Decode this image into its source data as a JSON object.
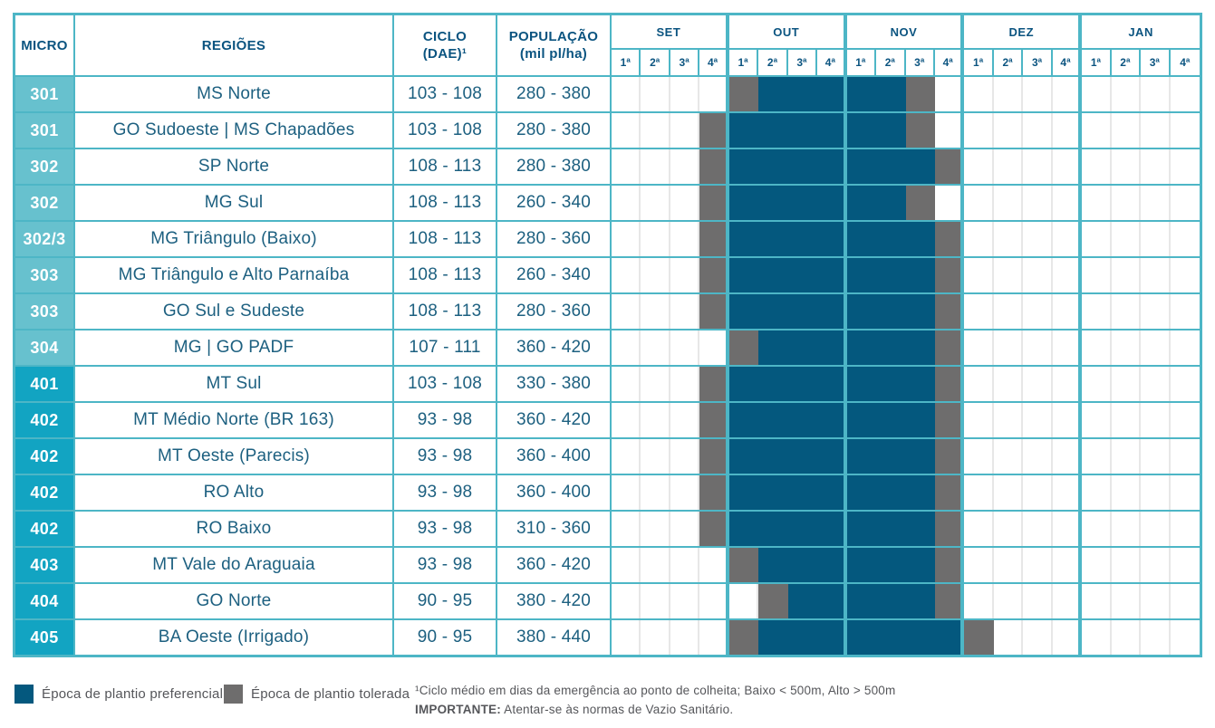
{
  "colors": {
    "teal": "#4db6c6",
    "header_text": "#0b5480",
    "cell_text": "#1d6080",
    "micro_bg_300": "#67c1ce",
    "micro_bg_400": "#12a4c2",
    "bar_preferencial": "#04587e",
    "bar_tolerada": "#6e6d6d",
    "week_line": "#e7e7e7",
    "note_text": "#55565a"
  },
  "header": {
    "micro": "MICRO",
    "regioes": "REGIÕES",
    "ciclo_line1": "CICLO",
    "ciclo_line2": "(DAE)¹",
    "pop_line1": "POPULAÇÃO",
    "pop_line2": "(mil pl/ha)",
    "months": [
      "SET",
      "OUT",
      "NOV",
      "DEZ",
      "JAN"
    ],
    "weeks": [
      "1ª",
      "2ª",
      "3ª",
      "4ª"
    ]
  },
  "chart_data": {
    "type": "table",
    "title": "Calendário de época de plantio por microrregião",
    "legend_position": "bottom",
    "week_columns": [
      "SET 1ª",
      "SET 2ª",
      "SET 3ª",
      "SET 4ª",
      "OUT 1ª",
      "OUT 2ª",
      "OUT 3ª",
      "OUT 4ª",
      "NOV 1ª",
      "NOV 2ª",
      "NOV 3ª",
      "NOV 4ª",
      "DEZ 1ª",
      "DEZ 2ª",
      "DEZ 3ª",
      "DEZ 4ª",
      "JAN 1ª",
      "JAN 2ª",
      "JAN 3ª",
      "JAN 4ª"
    ],
    "schedule_key": {
      ".": "vazio",
      "P": "Época de plantio preferencial",
      "T": "Época de plantio tolerada"
    }
  },
  "table": {
    "rows": [
      {
        "micro": "301",
        "regiao": "MS Norte",
        "ciclo": "103 - 108",
        "pop": "280 - 380",
        "group": "g3",
        "schedule": "....TPPPPPT........."
      },
      {
        "micro": "301",
        "regiao": "GO Sudoeste | MS Chapadões",
        "ciclo": "103 - 108",
        "pop": "280 - 380",
        "group": "g3",
        "schedule": "...TPPPPPPT........."
      },
      {
        "micro": "302",
        "regiao": "SP Norte",
        "ciclo": "108 - 113",
        "pop": "280 - 380",
        "group": "g3",
        "schedule": "...TPPPPPPPT........"
      },
      {
        "micro": "302",
        "regiao": "MG Sul",
        "ciclo": "108 - 113",
        "pop": "260 - 340",
        "group": "g3",
        "schedule": "...TPPPPPPT........."
      },
      {
        "micro": "302/3",
        "regiao": "MG Triângulo (Baixo)",
        "ciclo": "108 - 113",
        "pop": "280 - 360",
        "group": "g3",
        "schedule": "...TPPPPPPPT........"
      },
      {
        "micro": "303",
        "regiao": "MG Triângulo e Alto Parnaíba",
        "ciclo": "108 - 113",
        "pop": "260 - 340",
        "group": "g3",
        "schedule": "...TPPPPPPPT........"
      },
      {
        "micro": "303",
        "regiao": "GO Sul e Sudeste",
        "ciclo": "108 - 113",
        "pop": "280 - 360",
        "group": "g3",
        "schedule": "...TPPPPPPPT........"
      },
      {
        "micro": "304",
        "regiao": "MG | GO PADF",
        "ciclo": "107 - 111",
        "pop": "360 - 420",
        "group": "g3",
        "schedule": "....TPPPPPPT........"
      },
      {
        "micro": "401",
        "regiao": "MT Sul",
        "ciclo": "103 - 108",
        "pop": "330 - 380",
        "group": "g4",
        "schedule": "...TPPPPPPPT........"
      },
      {
        "micro": "402",
        "regiao": "MT Médio Norte (BR 163)",
        "ciclo": "93 - 98",
        "pop": "360 - 420",
        "group": "g4",
        "schedule": "...TPPPPPPPT........"
      },
      {
        "micro": "402",
        "regiao": "MT Oeste (Parecis)",
        "ciclo": "93 - 98",
        "pop": "360 - 400",
        "group": "g4",
        "schedule": "...TPPPPPPPT........"
      },
      {
        "micro": "402",
        "regiao": "RO Alto",
        "ciclo": "93 - 98",
        "pop": "360 - 400",
        "group": "g4",
        "schedule": "...TPPPPPPPT........"
      },
      {
        "micro": "402",
        "regiao": "RO Baixo",
        "ciclo": "93 - 98",
        "pop": "310 - 360",
        "group": "g4",
        "schedule": "...TPPPPPPPT........"
      },
      {
        "micro": "403",
        "regiao": "MT Vale do Araguaia",
        "ciclo": "93 - 98",
        "pop": "360 - 420",
        "group": "g4",
        "schedule": "....TPPPPPPT........"
      },
      {
        "micro": "404",
        "regiao": "GO Norte",
        "ciclo": "90 - 95",
        "pop": "380 - 420",
        "group": "g4",
        "schedule": ".....TPPPPPT........"
      },
      {
        "micro": "405",
        "regiao": "BA Oeste (Irrigado)",
        "ciclo": "90 - 95",
        "pop": "380 - 440",
        "group": "g4",
        "schedule": "....TPPPPPPPT......."
      }
    ]
  },
  "legend": {
    "preferencial": "Época de plantio preferencial",
    "tolerada": "Época de plantio tolerada"
  },
  "footnote": {
    "line1": "¹Ciclo médio em dias da emergência ao ponto de colheita; Baixo < 500m, Alto > 500m",
    "important_label": "IMPORTANTE:",
    "important_text": " Atentar-se às normas de Vazio Sanitário."
  }
}
